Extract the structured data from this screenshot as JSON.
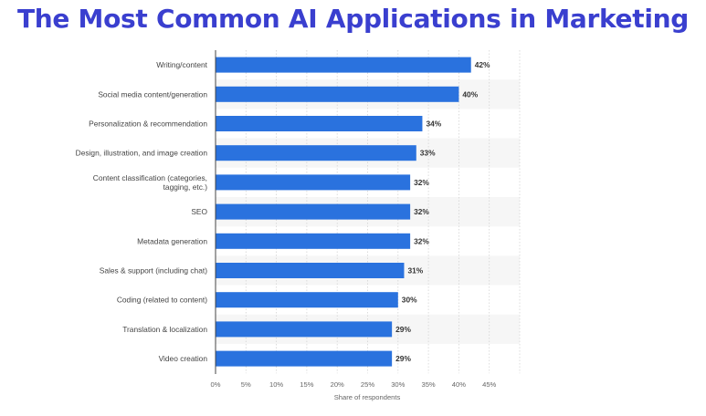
{
  "title": "The Most Common AI Applications in Marketing",
  "chart_data": {
    "type": "bar",
    "orientation": "horizontal",
    "title": "The Most Common AI Applications in Marketing",
    "xlabel": "Share of respondents",
    "ylabel": "",
    "xlim": [
      0,
      50
    ],
    "x_ticks": [
      "0%",
      "5%",
      "10%",
      "15%",
      "20%",
      "25%",
      "30%",
      "35%",
      "40%",
      "45%"
    ],
    "x_tick_values": [
      0,
      5,
      10,
      15,
      20,
      25,
      30,
      35,
      40,
      45
    ],
    "categories": [
      [
        "Writing/content"
      ],
      [
        "Social media content/generation"
      ],
      [
        "Personalization & recommendation"
      ],
      [
        "Design, illustration, and image creation"
      ],
      [
        "Content classification (categories,",
        "tagging, etc.)"
      ],
      [
        "SEO"
      ],
      [
        "Metadata generation"
      ],
      [
        "Sales & support (including chat)"
      ],
      [
        "Coding (related to content)"
      ],
      [
        "Translation & localization"
      ],
      [
        "Video creation"
      ]
    ],
    "values": [
      42,
      40,
      34,
      33,
      32,
      32,
      32,
      31,
      30,
      29,
      29
    ],
    "value_labels": [
      "42%",
      "40%",
      "34%",
      "33%",
      "32%",
      "32%",
      "32%",
      "31%",
      "30%",
      "29%",
      "29%"
    ],
    "grid": true,
    "legend": "none",
    "bar_color": "#2a72de",
    "title_color": "#3a3fcf"
  }
}
